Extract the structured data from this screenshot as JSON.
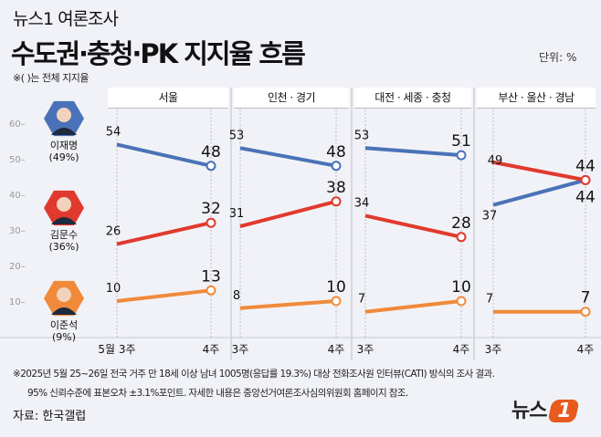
{
  "header": {
    "kicker": "뉴스1 여론조사",
    "title": "수도권·충청·PK 지지율 흐름",
    "note": "※( )는 전체 지지율",
    "unit": "단위: %"
  },
  "candidates": [
    {
      "name": "이재명",
      "overall": "(49%)",
      "color": "#4a72b8"
    },
    {
      "name": "김문수",
      "overall": "(36%)",
      "color": "#e03a2e"
    },
    {
      "name": "이준석",
      "overall": "(9%)",
      "color": "#f08a3a"
    }
  ],
  "chart_data": {
    "type": "line",
    "ylim": [
      0,
      60
    ],
    "yticks": [
      10,
      20,
      30,
      40,
      50,
      60
    ],
    "grid": false,
    "panels": [
      {
        "title": "서울",
        "x": [
          "5월 3주",
          "4주"
        ],
        "series": [
          {
            "name": "이재명",
            "values": [
              54,
              48
            ]
          },
          {
            "name": "김문수",
            "values": [
              26,
              32
            ]
          },
          {
            "name": "이준석",
            "values": [
              10,
              13
            ]
          }
        ]
      },
      {
        "title": "인천 · 경기",
        "x": [
          "3주",
          "4주"
        ],
        "series": [
          {
            "name": "이재명",
            "values": [
              53,
              48
            ]
          },
          {
            "name": "김문수",
            "values": [
              31,
              38
            ]
          },
          {
            "name": "이준석",
            "values": [
              8,
              10
            ]
          }
        ]
      },
      {
        "title": "대전 · 세종 · 충청",
        "x": [
          "3주",
          "4주"
        ],
        "series": [
          {
            "name": "이재명",
            "values": [
              53,
              51
            ]
          },
          {
            "name": "김문수",
            "values": [
              34,
              28
            ]
          },
          {
            "name": "이준석",
            "values": [
              7,
              10
            ]
          }
        ]
      },
      {
        "title": "부산 · 울산 · 경남",
        "x": [
          "3주",
          "4주"
        ],
        "series": [
          {
            "name": "이재명",
            "values": [
              37,
              44
            ]
          },
          {
            "name": "김문수",
            "values": [
              49,
              44
            ]
          },
          {
            "name": "이준석",
            "values": [
              7,
              7
            ]
          }
        ]
      }
    ]
  },
  "footer": {
    "line1": "※2025년 5월 25~26일 전국 거주 만 18세 이상 남녀 1005명(응답률 19.3%) 대상 전화조사원 인터뷰(CATI) 방식의 조사 결과.",
    "line2": "95% 신뢰수준에 표본오차 ±3.1%포인트. 자세한 내용은 중앙선거여론조사심의위원회 홈페이지 참조.",
    "source": "자료: 한국갤럽",
    "logo": "뉴스1"
  }
}
